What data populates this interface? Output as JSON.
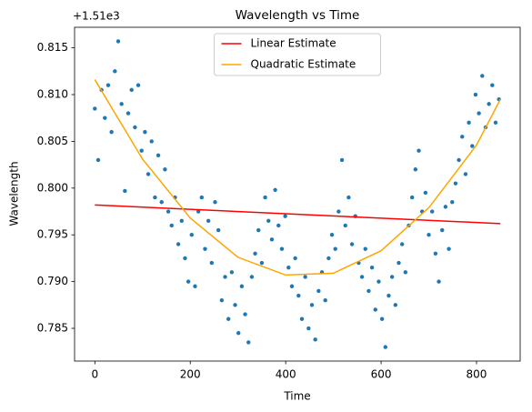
{
  "chart_data": {
    "type": "scatter",
    "title": "Wavelength vs Time",
    "xlabel": "Time",
    "ylabel": "Wavelength",
    "y_offset_label": "+1.51e3",
    "xlim": [
      -42.5,
      891.5
    ],
    "xticks": [
      0,
      200,
      400,
      600,
      800
    ],
    "ylim": [
      0.7815,
      0.8172
    ],
    "yticks": [
      0.785,
      {
        "value": 0.79,
        "label": "0.790"
      },
      0.795,
      {
        "value": 0.8,
        "label": "0.800"
      },
      0.805,
      {
        "value": 0.81,
        "label": "0.810"
      },
      0.815
    ],
    "legend": "upper center",
    "series": [
      {
        "type": "scatter",
        "color": "#1f77b4",
        "x": [
          0,
          7,
          14,
          21,
          28,
          35,
          42,
          49,
          56,
          63,
          70,
          77,
          84,
          91,
          98,
          105,
          112,
          119,
          126,
          133,
          140,
          147,
          154,
          161,
          168,
          175,
          182,
          189,
          196,
          203,
          210,
          217,
          224,
          231,
          238,
          245,
          252,
          259,
          266,
          273,
          280,
          287,
          294,
          301,
          308,
          315,
          322,
          329,
          336,
          343,
          350,
          357,
          364,
          371,
          378,
          385,
          392,
          399,
          406,
          413,
          420,
          427,
          434,
          441,
          448,
          455,
          462,
          469,
          476,
          483,
          490,
          497,
          504,
          511,
          518,
          525,
          532,
          539,
          546,
          553,
          560,
          567,
          574,
          581,
          588,
          595,
          602,
          609,
          616,
          623,
          630,
          637,
          644,
          651,
          658,
          665,
          672,
          679,
          686,
          693,
          700,
          707,
          714,
          721,
          728,
          735,
          742,
          749,
          756,
          763,
          770,
          777,
          784,
          791,
          798,
          805,
          812,
          819,
          826,
          833,
          840,
          847
        ],
        "values": [
          0.8085,
          0.803,
          0.8105,
          0.8075,
          0.811,
          0.806,
          0.8125,
          0.8157,
          0.809,
          0.7997,
          0.808,
          0.8105,
          0.8065,
          0.811,
          0.804,
          0.806,
          0.8015,
          0.805,
          0.799,
          0.8035,
          0.7985,
          0.802,
          0.7975,
          0.796,
          0.799,
          0.794,
          0.7965,
          0.7925,
          0.79,
          0.795,
          0.7895,
          0.7975,
          0.799,
          0.7935,
          0.7965,
          0.792,
          0.7985,
          0.7955,
          0.788,
          0.7905,
          0.786,
          0.791,
          0.7875,
          0.7845,
          0.7895,
          0.7865,
          0.7835,
          0.7905,
          0.793,
          0.7955,
          0.792,
          0.799,
          0.7965,
          0.7945,
          0.7998,
          0.796,
          0.7935,
          0.797,
          0.7915,
          0.7895,
          0.7925,
          0.7885,
          0.786,
          0.7905,
          0.785,
          0.7875,
          0.7838,
          0.789,
          0.791,
          0.788,
          0.7925,
          0.795,
          0.7935,
          0.7975,
          0.803,
          0.796,
          0.799,
          0.794,
          0.797,
          0.792,
          0.7905,
          0.7935,
          0.789,
          0.7915,
          0.787,
          0.79,
          0.786,
          0.783,
          0.7885,
          0.7905,
          0.7875,
          0.792,
          0.794,
          0.791,
          0.796,
          0.799,
          0.802,
          0.804,
          0.7975,
          0.7995,
          0.795,
          0.7975,
          0.793,
          0.79,
          0.7955,
          0.798,
          0.7935,
          0.7985,
          0.8005,
          0.803,
          0.8055,
          0.8015,
          0.807,
          0.8045,
          0.81,
          0.808,
          0.812,
          0.8065,
          0.809,
          0.811,
          0.807,
          0.8095
        ]
      },
      {
        "type": "line",
        "name": "Linear Estimate",
        "color": "red",
        "x": [
          0,
          850
        ],
        "values": [
          0.7982,
          0.7962
        ]
      },
      {
        "type": "line",
        "name": "Quadratic Estimate",
        "color": "orange",
        "x": [
          0,
          100,
          200,
          300,
          400,
          500,
          600,
          700,
          800,
          850
        ],
        "values": [
          0.8116,
          0.8031,
          0.7968,
          0.7926,
          0.7907,
          0.7909,
          0.7933,
          0.7979,
          0.8046,
          0.8095
        ]
      }
    ]
  }
}
